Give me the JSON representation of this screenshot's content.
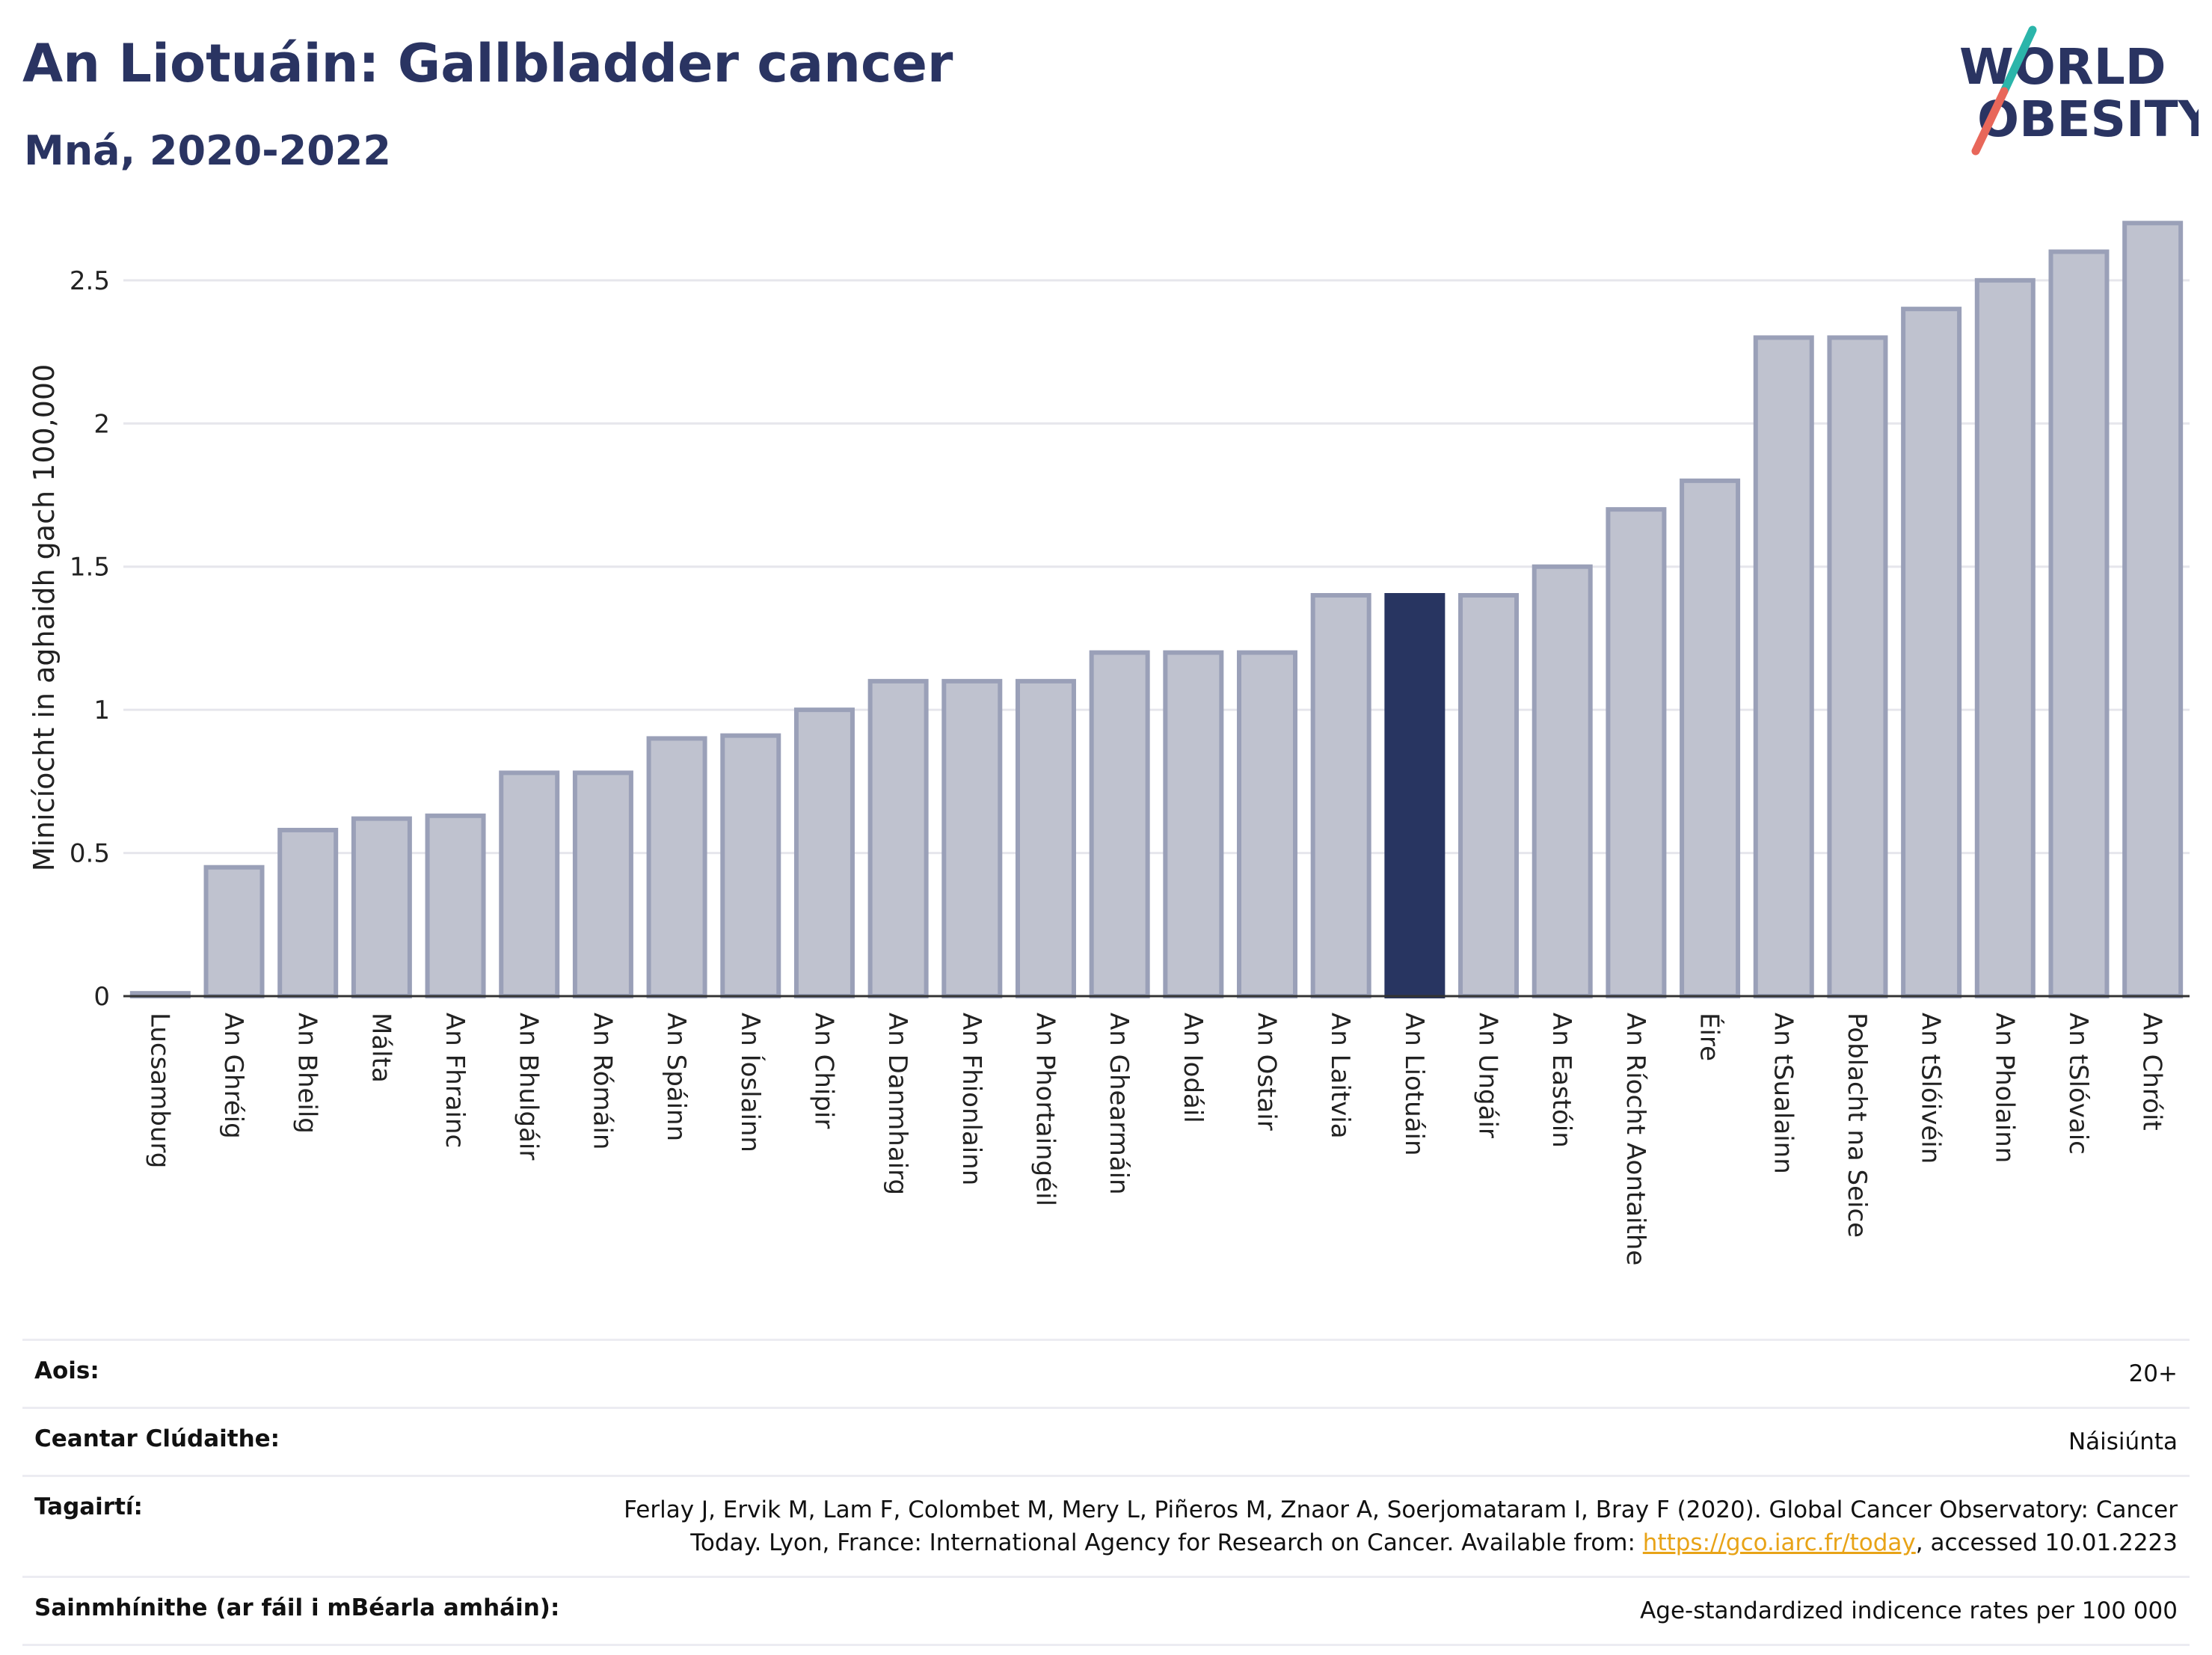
{
  "header": {
    "title": "An Liotuáin: Gallbladder cancer",
    "subtitle": "Mná, 2020-2022"
  },
  "logo": {
    "line1": "WORLD",
    "line2": "OBESITY"
  },
  "colors": {
    "bar": "#bfc2cf",
    "bar_stroke": "#9aa0b8",
    "highlight": "#283561",
    "text": "#273360",
    "grid": "#e6e6ec",
    "logo_teal": "#2bb5aa",
    "logo_red": "#e8675a"
  },
  "chart_data": {
    "type": "bar",
    "ylabel": "Minicíocht in aghaidh gach 100,000",
    "xlabel": "",
    "ylim": [
      0,
      2.8
    ],
    "yticks": [
      0,
      0.5,
      1,
      1.5,
      2,
      2.5
    ],
    "ytick_labels": [
      "0",
      "0.5",
      "1",
      "1.5",
      "2",
      "2.5"
    ],
    "grid": true,
    "highlight": "An Liotuáin",
    "categories": [
      "Lucsamburg",
      "An Ghréig",
      "An Bheilg",
      "Málta",
      "An Fhrainc",
      "An Bhulgáir",
      "An Rómáin",
      "An Spáinn",
      "An Íoslainn",
      "An Chipir",
      "An Danmhairg",
      "An Fhionlainn",
      "An Phortaingéil",
      "An Ghearmáin",
      "An Iodáil",
      "An Ostair",
      "An Laitvia",
      "An Liotuáin",
      "An Ungáir",
      "An Eastóin",
      "An Ríocht Aontaithe",
      "Éire",
      "An tSualainn",
      "Poblacht na Seice",
      "An tSlóivéin",
      "An Pholainn",
      "An tSlóvaic",
      "An Chróit"
    ],
    "values": [
      0.01,
      0.45,
      0.58,
      0.62,
      0.63,
      0.78,
      0.78,
      0.9,
      0.91,
      1.0,
      1.1,
      1.1,
      1.1,
      1.2,
      1.2,
      1.2,
      1.4,
      1.4,
      1.4,
      1.5,
      1.7,
      1.8,
      2.3,
      2.3,
      2.4,
      2.5,
      2.6,
      2.7
    ]
  },
  "info": {
    "age_label": "Aois:",
    "age_value": "20+",
    "area_label": "Ceantar Clúdaithe:",
    "area_value": "Náisiúnta",
    "ref_label": "Tagairtí:",
    "ref_text": "Ferlay J, Ervik M, Lam F, Colombet M, Mery L, Piñeros M, Znaor A, Soerjomataram I, Bray F (2020). Global Cancer Observatory: Cancer Today. Lyon, France: International Agency for Research on Cancer. Available from: ",
    "ref_link": "https://gco.iarc.fr/today",
    "ref_suffix": ", accessed 10.01.2223",
    "def_label": "Sainmhínithe (ar fáil i mBéarla amháin):",
    "def_value": "Age-standardized indicence rates per 100 000"
  }
}
